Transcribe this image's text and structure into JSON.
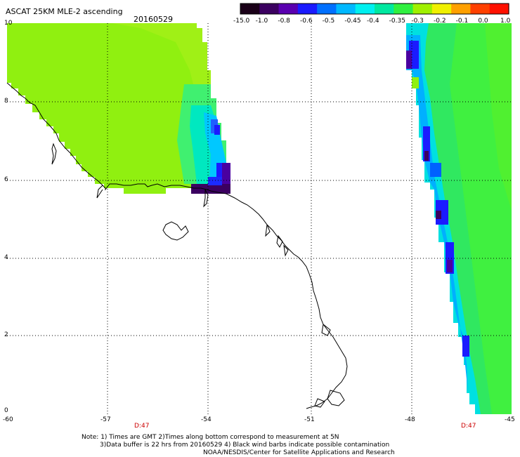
{
  "header": {
    "title": "ASCAT 25KM MLE-2 ascending",
    "date": "20160529"
  },
  "colorbar": {
    "tick_labels": [
      "-15.0",
      "-1.0",
      "-0.8",
      "-0.6",
      "-0.5",
      "-0.45",
      "-0.4",
      "-0.35",
      "-0.3",
      "-0.2",
      "-0.1",
      "0.0",
      "1.0"
    ],
    "colors": [
      "#1a0018",
      "#3b0060",
      "#5a00b0",
      "#1b1bff",
      "#0070ff",
      "#00b8ff",
      "#00f0f0",
      "#00e8a0",
      "#30f040",
      "#a0f000",
      "#f0f000",
      "#ffa000",
      "#ff4000",
      "#ff1000"
    ]
  },
  "axes": {
    "lon_labels": [
      "-60",
      "-57",
      "-54",
      "-51",
      "-48",
      "-45"
    ],
    "lat_labels": [
      "10",
      "8",
      "6",
      "4",
      "2",
      "0"
    ],
    "time_labels": [
      "D:47",
      "D:47"
    ]
  },
  "footer": {
    "line1": "Note: 1) Times are GMT 2)Times along bottom correspond to measurement at 5N",
    "line2": "3)Data buffer is 22 hrs from 20160529 4) Black wind barbs indicate possible contamination",
    "line3": "NOAA/NESDIS/Center for Satellite Applications and Research"
  }
}
